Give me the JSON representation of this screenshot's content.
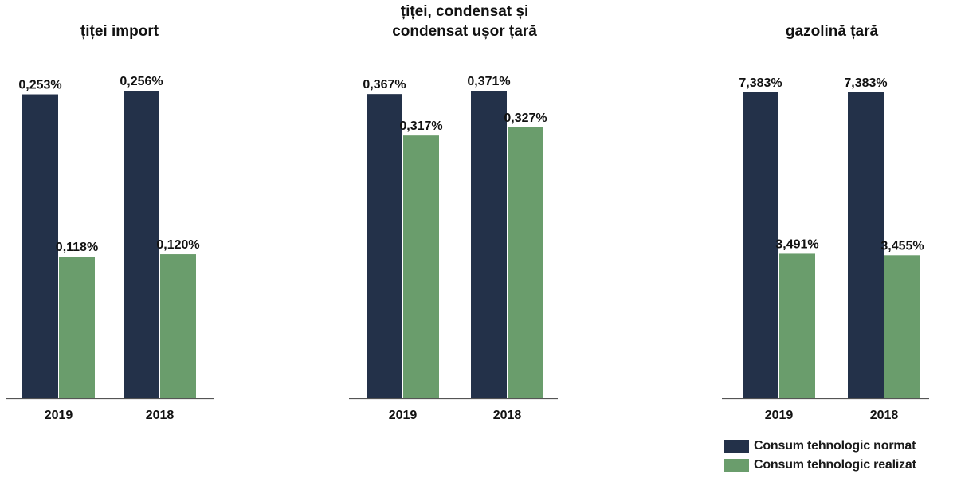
{
  "colors": {
    "normat": "#233149",
    "realizat": "#6a9d6c",
    "axis": "#555555",
    "text": "#111111"
  },
  "chart_data": [
    {
      "type": "bar",
      "title": [
        "țiței import"
      ],
      "categories": [
        "2019",
        "2018"
      ],
      "series": [
        {
          "name": "Consum tehnologic normat",
          "values": [
            0.253,
            0.256
          ],
          "labels": [
            "0,253%",
            "0,256%"
          ]
        },
        {
          "name": "Consum tehnologic realizat",
          "values": [
            0.118,
            0.12
          ],
          "labels": [
            "0,118%",
            "0,120%"
          ]
        }
      ]
    },
    {
      "type": "bar",
      "title": [
        "țiței, condensat și",
        "condensat ușor țară"
      ],
      "categories": [
        "2019",
        "2018"
      ],
      "series": [
        {
          "name": "Consum tehnologic normat",
          "values": [
            0.367,
            0.371
          ],
          "labels": [
            "0,367%",
            "0,371%"
          ]
        },
        {
          "name": "Consum tehnologic realizat",
          "values": [
            0.317,
            0.327
          ],
          "labels": [
            "0,317%",
            "0,327%"
          ]
        }
      ]
    },
    {
      "type": "bar",
      "title": [
        "gazolină țară"
      ],
      "categories": [
        "2019",
        "2018"
      ],
      "series": [
        {
          "name": "Consum tehnologic normat",
          "values": [
            7.383,
            7.383
          ],
          "labels": [
            "7,383%",
            "7,383%"
          ]
        },
        {
          "name": "Consum tehnologic realizat",
          "values": [
            3.491,
            3.455
          ],
          "labels": [
            "3,491%",
            "3,455%"
          ]
        }
      ]
    }
  ],
  "legend": {
    "items": [
      {
        "label": "Consum tehnologic normat",
        "color_key": "normat"
      },
      {
        "label": "Consum tehnologic realizat",
        "color_key": "realizat"
      }
    ]
  }
}
